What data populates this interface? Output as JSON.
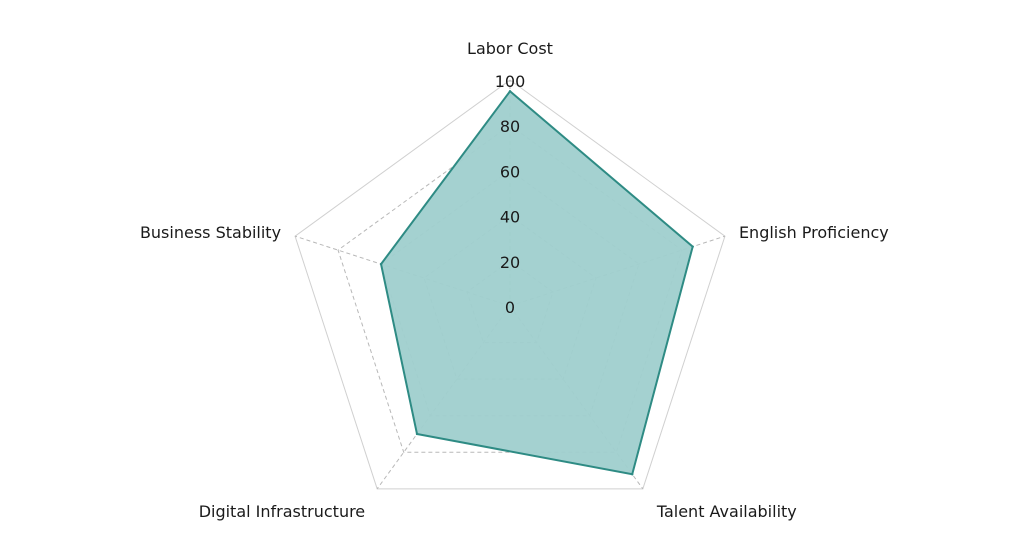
{
  "chart_data": {
    "type": "radar",
    "title": "",
    "axes": [
      "Labor Cost",
      "English Proficiency",
      "Talent Availability",
      "Digital Infrastructure",
      "Business Stability"
    ],
    "rlim": [
      0,
      100
    ],
    "ticks": [
      "0",
      "20",
      "40",
      "60",
      "80",
      "100"
    ],
    "tick_values": [
      0,
      20,
      40,
      60,
      80,
      100
    ],
    "grid": true,
    "series": [
      {
        "values": [
          95,
          85,
          92,
          70,
          60
        ]
      }
    ],
    "colors": {
      "fill": "#9fcfcd",
      "stroke": "#2e8b84",
      "grid": "#b8b8b8",
      "outer_grid": "#d0d0d0"
    }
  }
}
